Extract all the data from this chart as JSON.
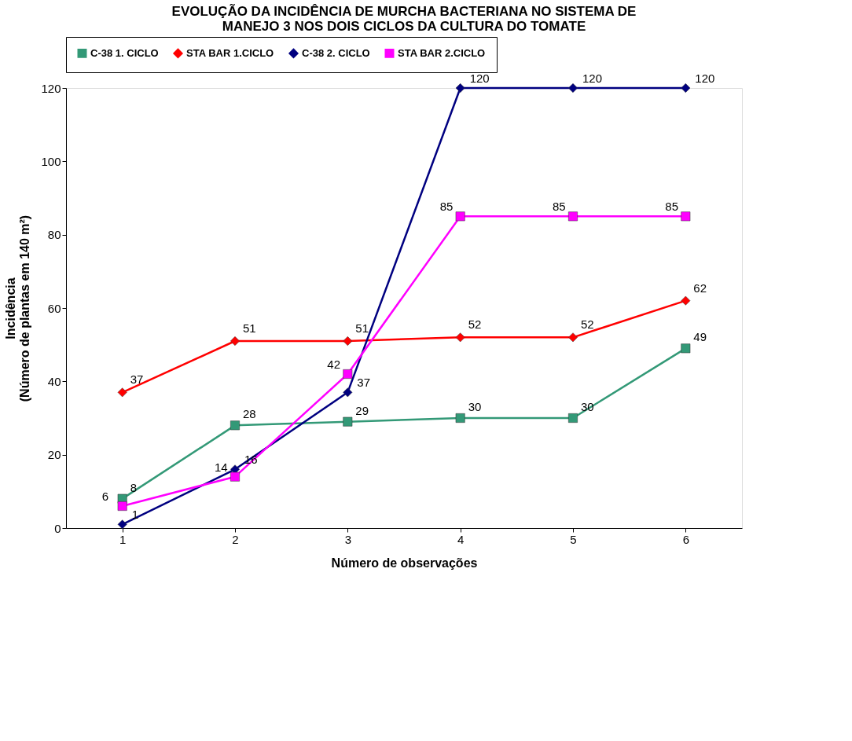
{
  "chart_data": {
    "type": "line",
    "title": [
      "EVOLUÇÃO DA INCIDÊNCIA DE MURCHA BACTERIANA NO SISTEMA DE",
      "MANEJO 3 NOS DOIS CICLOS DA CULTURA DO TOMATE"
    ],
    "xlabel": "Número de observações",
    "ylabel": [
      "Incidência",
      "(Número de plantas em 140 m²)"
    ],
    "categories": [
      "1",
      "2",
      "3",
      "4",
      "5",
      "6"
    ],
    "ylim": [
      0,
      120
    ],
    "yticks": [
      0,
      20,
      40,
      60,
      80,
      100,
      120
    ],
    "grid": false,
    "legend": "top",
    "data_labels": true,
    "line_style": "solid",
    "series": [
      {
        "name": "C-38 1. CICLO",
        "color": "#339977",
        "marker": "square",
        "values": [
          8,
          28,
          29,
          30,
          30,
          49
        ]
      },
      {
        "name": "STA BAR 1.CICLO",
        "color": "#ff0000",
        "marker": "diamond",
        "values": [
          37,
          51,
          51,
          52,
          52,
          62
        ]
      },
      {
        "name": "C-38 2. CICLO",
        "color": "#000080",
        "marker": "diamond",
        "values": [
          1,
          16,
          37,
          120,
          120,
          120
        ]
      },
      {
        "name": "STA BAR 2.CICLO",
        "color": "#ff00ff",
        "marker": "square",
        "values": [
          6,
          14,
          42,
          85,
          85,
          85
        ]
      }
    ]
  }
}
